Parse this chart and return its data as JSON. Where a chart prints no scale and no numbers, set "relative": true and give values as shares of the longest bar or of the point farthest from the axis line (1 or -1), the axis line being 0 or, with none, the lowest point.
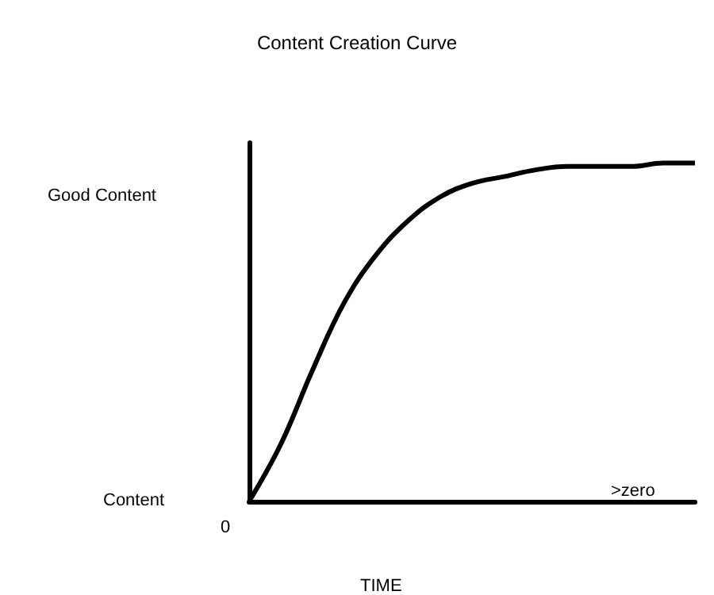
{
  "chart_data": {
    "type": "line",
    "title": "Content Creation Curve",
    "xlabel": "TIME",
    "relative": true,
    "color": "#000000",
    "marker": "none",
    "grid": false,
    "categories": [
      null,
      null,
      null,
      null,
      null,
      null,
      null,
      null,
      null,
      null,
      null,
      null,
      null,
      null,
      null
    ],
    "values": [
      0,
      0.17,
      0.39,
      0.59,
      0.73,
      0.83,
      0.9,
      0.94,
      0.96,
      0.98,
      0.99,
      0.99,
      0.99,
      1,
      1
    ],
    "annotations": [
      "Good Content",
      "Content",
      "0",
      ">zero"
    ]
  }
}
